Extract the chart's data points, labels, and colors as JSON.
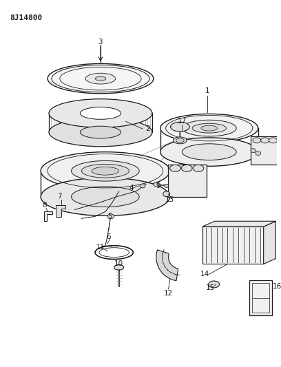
{
  "title": "8J14800",
  "bg": "#ffffff",
  "lc": "#1a1a1a",
  "fig_w": 4.08,
  "fig_h": 5.33,
  "dpi": 100
}
